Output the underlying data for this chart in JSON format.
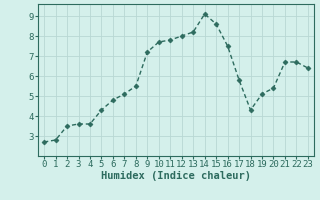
{
  "x": [
    0,
    1,
    2,
    3,
    4,
    5,
    6,
    7,
    8,
    9,
    10,
    11,
    12,
    13,
    14,
    15,
    16,
    17,
    18,
    19,
    20,
    21,
    22,
    23
  ],
  "y": [
    2.7,
    2.8,
    3.5,
    3.6,
    3.6,
    4.3,
    4.8,
    5.1,
    5.5,
    7.2,
    7.7,
    7.8,
    8.0,
    8.2,
    9.1,
    8.6,
    7.5,
    5.8,
    4.3,
    5.1,
    5.4,
    6.7,
    6.7,
    6.4
  ],
  "line_color": "#2d6b5e",
  "marker": "D",
  "marker_size": 2.5,
  "bg_color": "#d4f0eb",
  "grid_color": "#b8d8d4",
  "xlabel": "Humidex (Indice chaleur)",
  "ylim": [
    2.0,
    9.6
  ],
  "xlim": [
    -0.5,
    23.5
  ],
  "yticks": [
    3,
    4,
    5,
    6,
    7,
    8,
    9
  ],
  "xticks": [
    0,
    1,
    2,
    3,
    4,
    5,
    6,
    7,
    8,
    9,
    10,
    11,
    12,
    13,
    14,
    15,
    16,
    17,
    18,
    19,
    20,
    21,
    22,
    23
  ],
  "tick_fontsize": 6.5,
  "xlabel_fontsize": 7.5,
  "linewidth": 1.0,
  "spine_color": "#2d6b5e"
}
